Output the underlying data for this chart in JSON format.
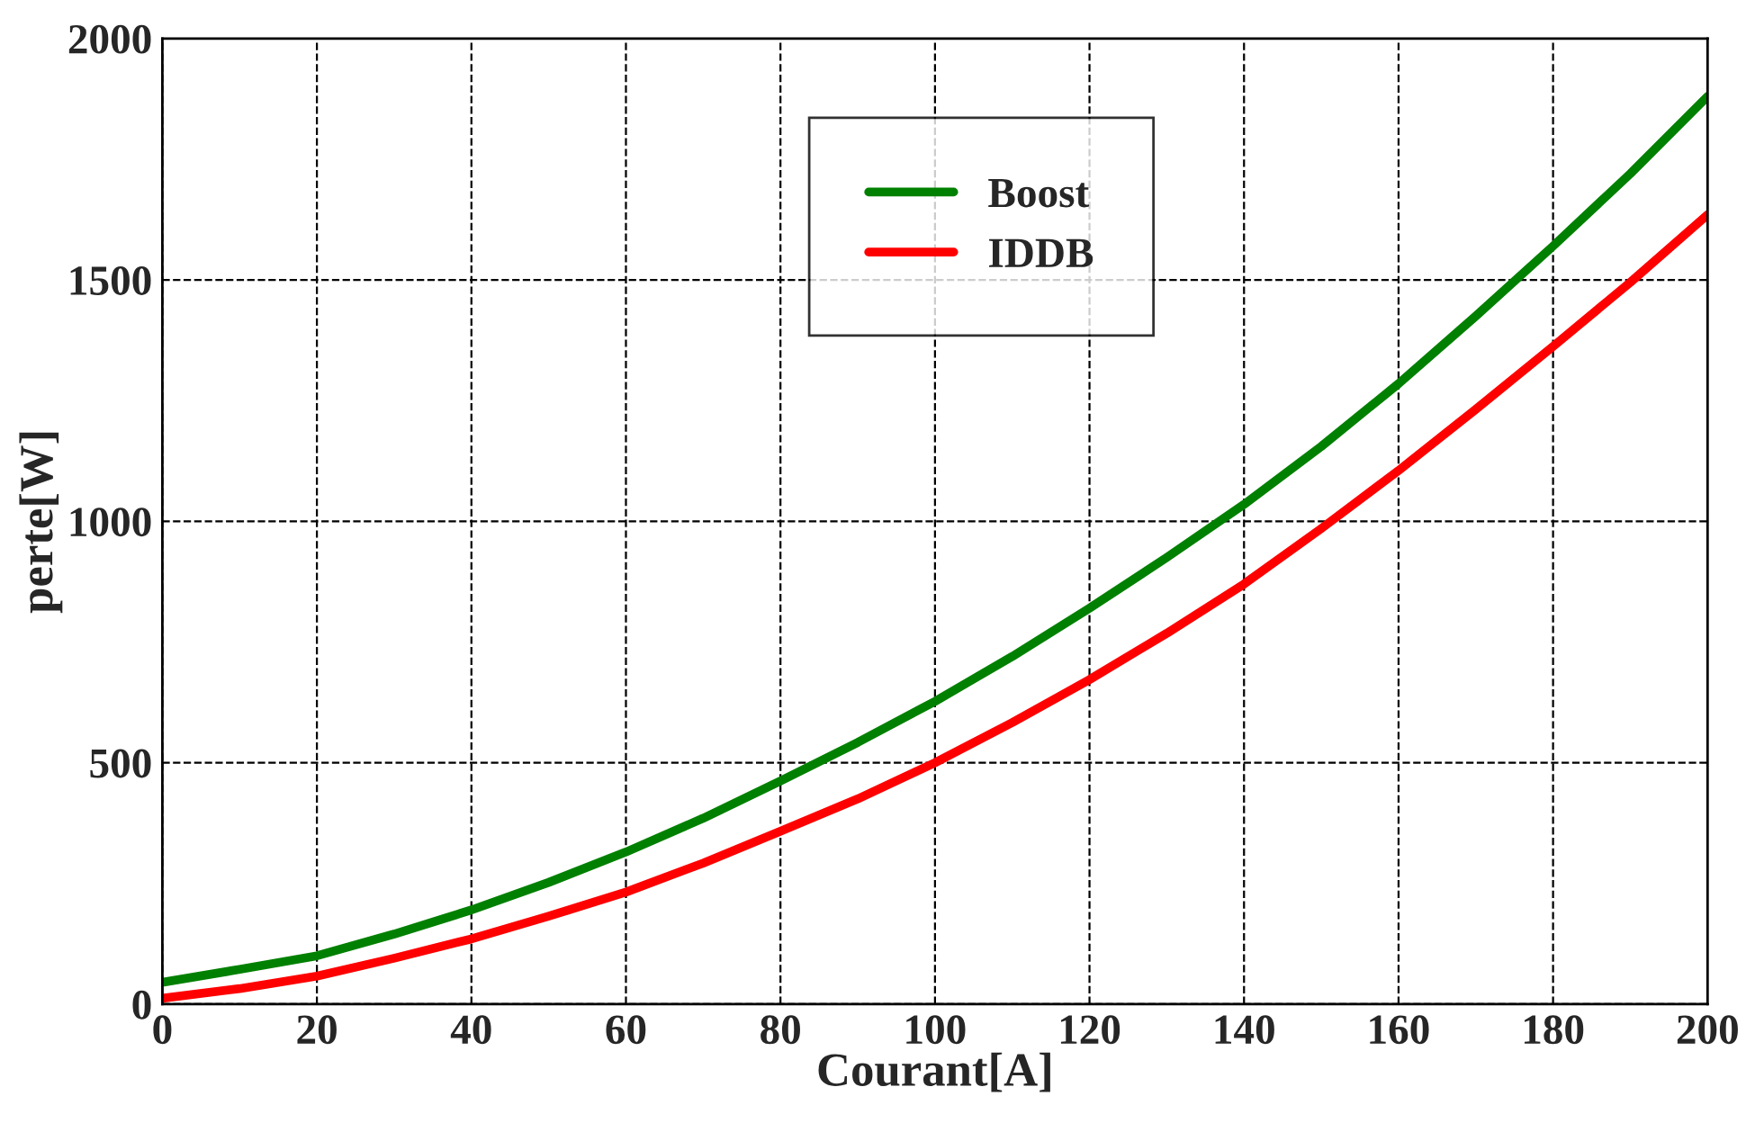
{
  "chart_data": {
    "type": "line",
    "xlabel": "Courant[A]",
    "ylabel": "perte[W]",
    "x": [
      0,
      10,
      20,
      30,
      40,
      50,
      60,
      70,
      80,
      90,
      100,
      110,
      120,
      130,
      140,
      150,
      160,
      170,
      180,
      190,
      200
    ],
    "series": [
      {
        "name": "Boost",
        "color": "#008000",
        "values": [
          45,
          72,
          100,
          145,
          195,
          252,
          315,
          385,
          462,
          542,
          627,
          720,
          820,
          925,
          1035,
          1155,
          1285,
          1425,
          1570,
          1720,
          1880
        ]
      },
      {
        "name": "IDDB",
        "color": "#ff0000",
        "values": [
          12,
          32,
          58,
          95,
          135,
          182,
          232,
          292,
          358,
          425,
          500,
          583,
          672,
          768,
          870,
          985,
          1105,
          1232,
          1362,
          1495,
          1635
        ]
      }
    ],
    "xlim": [
      0,
      200
    ],
    "xticks": [
      0,
      20,
      40,
      60,
      80,
      100,
      120,
      140,
      160,
      180,
      200
    ],
    "ylim": [
      0,
      2000
    ],
    "yticks": [
      0,
      500,
      1000,
      1500,
      2000
    ],
    "grid": true,
    "legend": "top",
    "line_style": "solid",
    "marker": "none"
  }
}
